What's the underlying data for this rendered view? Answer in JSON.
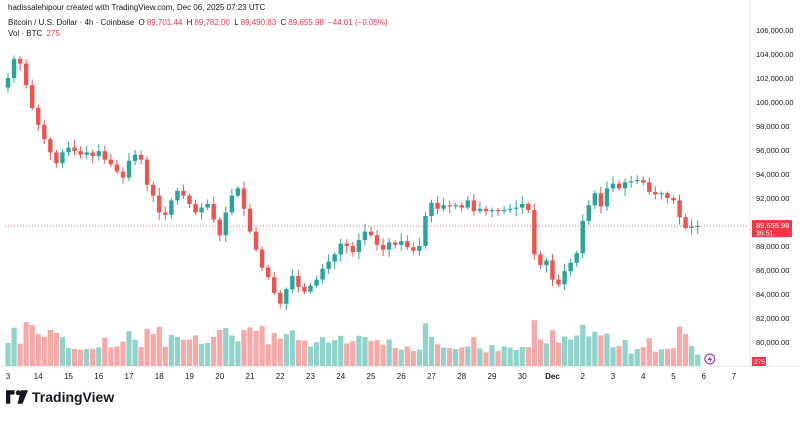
{
  "header": {
    "attribution": "hadissalehipour created with TradingView.com, Dec 06, 2025 07:23 UTC",
    "symbol": "Bitcoin / U.S. Dollar · 4h · Coinbase",
    "open_label": "O",
    "open": "89,701.44",
    "high_label": "H",
    "high": "89,782.00",
    "low_label": "L",
    "low": "89,490.83",
    "close_label": "C",
    "close": "89,655.98",
    "change": "−44.01 (−0.05%)",
    "volume_label": "Vol · BTC",
    "volume": "275"
  },
  "price_tag": {
    "price": "89,655.98",
    "countdown": "36:51",
    "color": "#f23645"
  },
  "volume_tag": {
    "value": "275"
  },
  "footer": {
    "brand": "TradingView"
  },
  "colors": {
    "up": "#26a69a",
    "down": "#ef5350",
    "vol_up": "#8fd3cb",
    "vol_down": "#f7a9a7"
  },
  "chart_data": {
    "type": "candlestick",
    "title": "",
    "timeframe": "4h",
    "ylim": [
      78000,
      106500
    ],
    "y_ticks": [
      80000,
      82000,
      84000,
      86000,
      88000,
      90000,
      92000,
      94000,
      96000,
      98000,
      100000,
      102000,
      104000,
      106000
    ],
    "y_tick_labels": [
      "80,000.00",
      "82,000.00",
      "84,000.00",
      "86,000.00",
      "88,000.00",
      "90,000.00",
      "92,000.00",
      "94,000.00",
      "96,000.00",
      "98,000.00",
      "100,000.00",
      "102,000.00",
      "104,000.00",
      "106,000.00"
    ],
    "x_ticks": [
      {
        "index": 0,
        "label": "3"
      },
      {
        "index": 5,
        "label": "14"
      },
      {
        "index": 10,
        "label": "15"
      },
      {
        "index": 15,
        "label": "16"
      },
      {
        "index": 20,
        "label": "17"
      },
      {
        "index": 25,
        "label": "18"
      },
      {
        "index": 30,
        "label": "19"
      },
      {
        "index": 35,
        "label": "20"
      },
      {
        "index": 40,
        "label": "21"
      },
      {
        "index": 45,
        "label": "22"
      },
      {
        "index": 50,
        "label": "23"
      },
      {
        "index": 55,
        "label": "24"
      },
      {
        "index": 60,
        "label": "25"
      },
      {
        "index": 65,
        "label": "26"
      },
      {
        "index": 70,
        "label": "27"
      },
      {
        "index": 75,
        "label": "28"
      },
      {
        "index": 80,
        "label": "29"
      },
      {
        "index": 85,
        "label": "30"
      },
      {
        "index": 90,
        "label": "Dec",
        "bold": true
      },
      {
        "index": 95,
        "label": "2"
      },
      {
        "index": 100,
        "label": "3"
      },
      {
        "index": 105,
        "label": "4"
      },
      {
        "index": 110,
        "label": "5"
      },
      {
        "index": 115,
        "label": "6"
      },
      {
        "index": 120,
        "label": "7"
      }
    ],
    "current_price": 89655.98,
    "closes": [
      102000,
      103600,
      103200,
      101400,
      99500,
      98100,
      96900,
      95800,
      94900,
      95800,
      96200,
      95900,
      95600,
      95800,
      95500,
      95900,
      95200,
      94800,
      94200,
      93700,
      95100,
      95600,
      95200,
      93100,
      92200,
      90800,
      90600,
      91800,
      92600,
      92200,
      91500,
      90800,
      91200,
      91500,
      90200,
      88900,
      90800,
      92200,
      92800,
      91100,
      89200,
      87700,
      86200,
      85400,
      84100,
      83200,
      84400,
      85500,
      84600,
      84200,
      84700,
      85200,
      86100,
      86700,
      87300,
      88200,
      88000,
      87500,
      88500,
      89200,
      88900,
      88100,
      87700,
      88300,
      88100,
      88400,
      87900,
      87600,
      88000,
      90500,
      91600,
      91100,
      91400,
      91300,
      91400,
      91200,
      91800,
      90900,
      91100,
      90900,
      91000,
      90900,
      91000,
      91100,
      91200,
      91500,
      91000,
      87300,
      86400,
      86800,
      85200,
      84800,
      85900,
      86600,
      87400,
      90100,
      91400,
      92400,
      91300,
      92800,
      93200,
      92800,
      93300,
      93400,
      93500,
      93300,
      92500,
      92300,
      92400,
      92000,
      91800,
      90400,
      89500,
      89600,
      89656
    ],
    "volumes": [
      "see script"
    ]
  }
}
